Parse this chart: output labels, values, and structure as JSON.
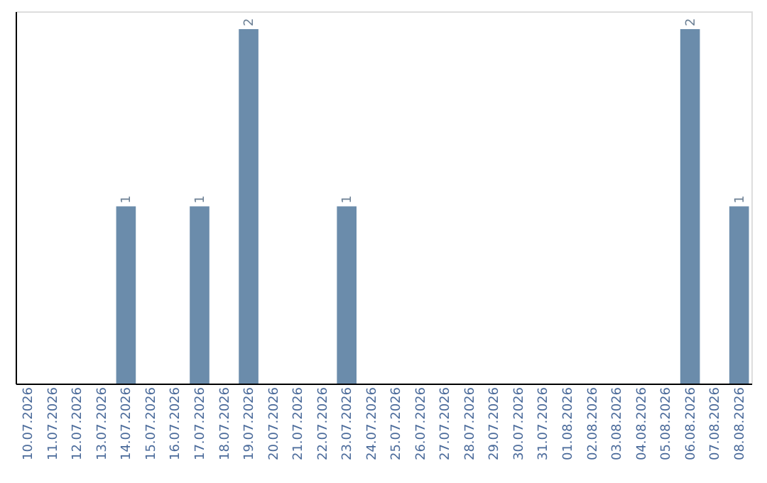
{
  "chart_data": {
    "type": "bar",
    "categories": [
      "10.07.2026",
      "11.07.2026",
      "12.07.2026",
      "13.07.2026",
      "14.07.2026",
      "15.07.2026",
      "16.07.2026",
      "17.07.2026",
      "18.07.2026",
      "19.07.2026",
      "20.07.2026",
      "21.07.2026",
      "22.07.2026",
      "23.07.2026",
      "24.07.2026",
      "25.07.2026",
      "26.07.2026",
      "27.07.2026",
      "28.07.2026",
      "29.07.2026",
      "30.07.2026",
      "31.07.2026",
      "01.08.2026",
      "02.08.2026",
      "03.08.2026",
      "04.08.2026",
      "05.08.2026",
      "06.08.2026",
      "07.08.2026",
      "08.08.2026"
    ],
    "values": [
      0,
      0,
      0,
      0,
      1,
      0,
      0,
      1,
      0,
      2,
      0,
      0,
      0,
      1,
      0,
      0,
      0,
      0,
      0,
      0,
      0,
      0,
      0,
      0,
      0,
      0,
      0,
      2,
      0,
      1
    ],
    "value_labels": [
      null,
      null,
      null,
      null,
      "1",
      null,
      null,
      "1",
      null,
      "2",
      null,
      null,
      null,
      "1",
      null,
      null,
      null,
      null,
      null,
      null,
      null,
      null,
      null,
      null,
      null,
      null,
      null,
      "2",
      null,
      "1"
    ],
    "color": "#6b8cab",
    "ylim": [
      0,
      2.1
    ],
    "grid": false,
    "tick_labels": "x"
  }
}
